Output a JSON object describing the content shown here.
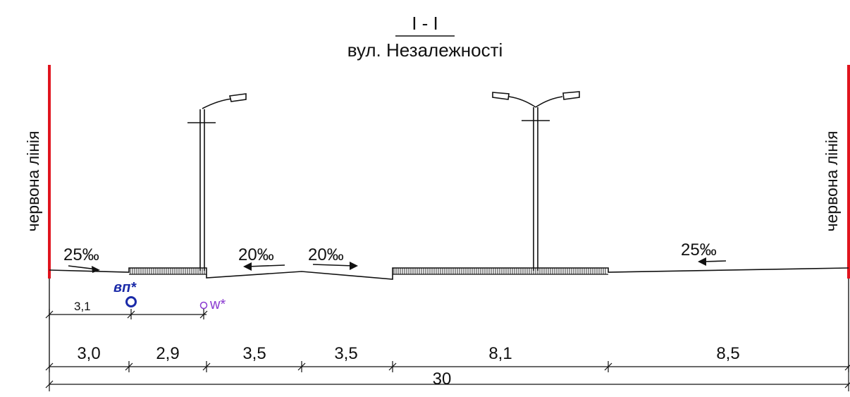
{
  "section": {
    "mark": "I - I",
    "street": "вул. Незалежності",
    "boundary_left": "червона лінія",
    "boundary_right": "червона лінія"
  },
  "colors": {
    "red_line": "#e0141e",
    "utility_vp": "#1a2aa8",
    "utility_w": "#8a3ad0",
    "ink": "#111111"
  },
  "slopes": {
    "left_sidewalk": "25‰",
    "carriageway_1": "20‰",
    "carriageway_2": "20‰",
    "right_sidewalk": "25‰"
  },
  "utilities": {
    "vp_label": "вп*",
    "w_label": "w*",
    "vp_offset": "3,1"
  },
  "dimensions": {
    "segments": [
      "3,0",
      "2,9",
      "3,5",
      "3,5",
      "8,1",
      "8,5"
    ],
    "total": "30"
  }
}
